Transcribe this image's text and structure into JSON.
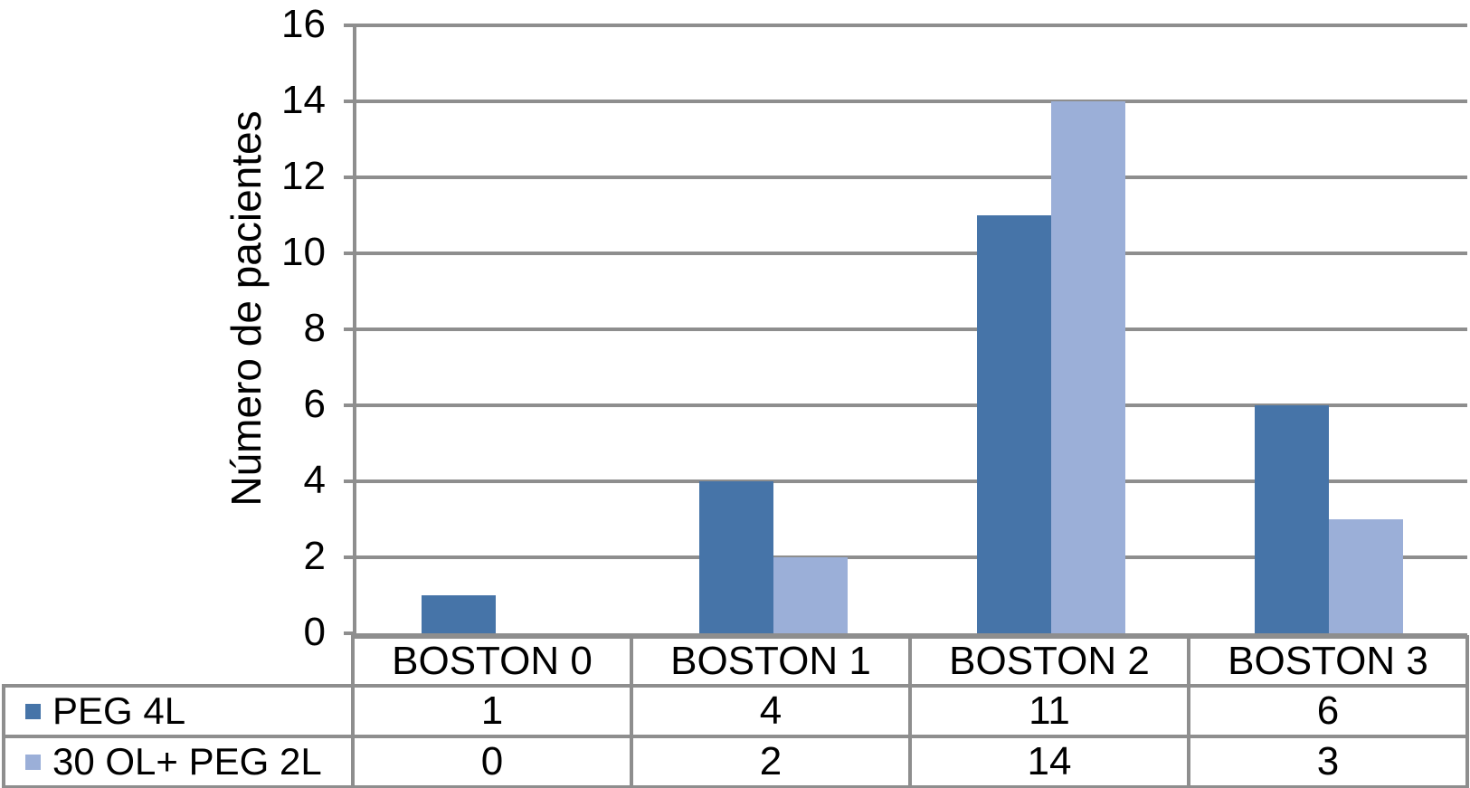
{
  "figure": {
    "background": "#ffffff"
  },
  "chart_data": {
    "type": "bar",
    "title": "",
    "xlabel": "",
    "ylabel": "Número de pacientes",
    "categories": [
      "BOSTON 0",
      "BOSTON 1",
      "BOSTON 2",
      "BOSTON 3"
    ],
    "series": [
      {
        "name": "PEG 4L",
        "color": "#4674a8",
        "values": [
          1,
          4,
          11,
          6
        ]
      },
      {
        "name": "30 OL+ PEG 2L",
        "color": "#9bafd8",
        "values": [
          0,
          2,
          14,
          3
        ]
      }
    ],
    "ylim": [
      0,
      16
    ],
    "yticks": [
      0,
      2,
      4,
      6,
      8,
      10,
      12,
      14,
      16
    ],
    "grid": true,
    "gridline_color": "#8e8e8e",
    "axis_color": "#8e8e8e",
    "table_border_color": "#8e8e8e",
    "legend_position": "table-left"
  }
}
